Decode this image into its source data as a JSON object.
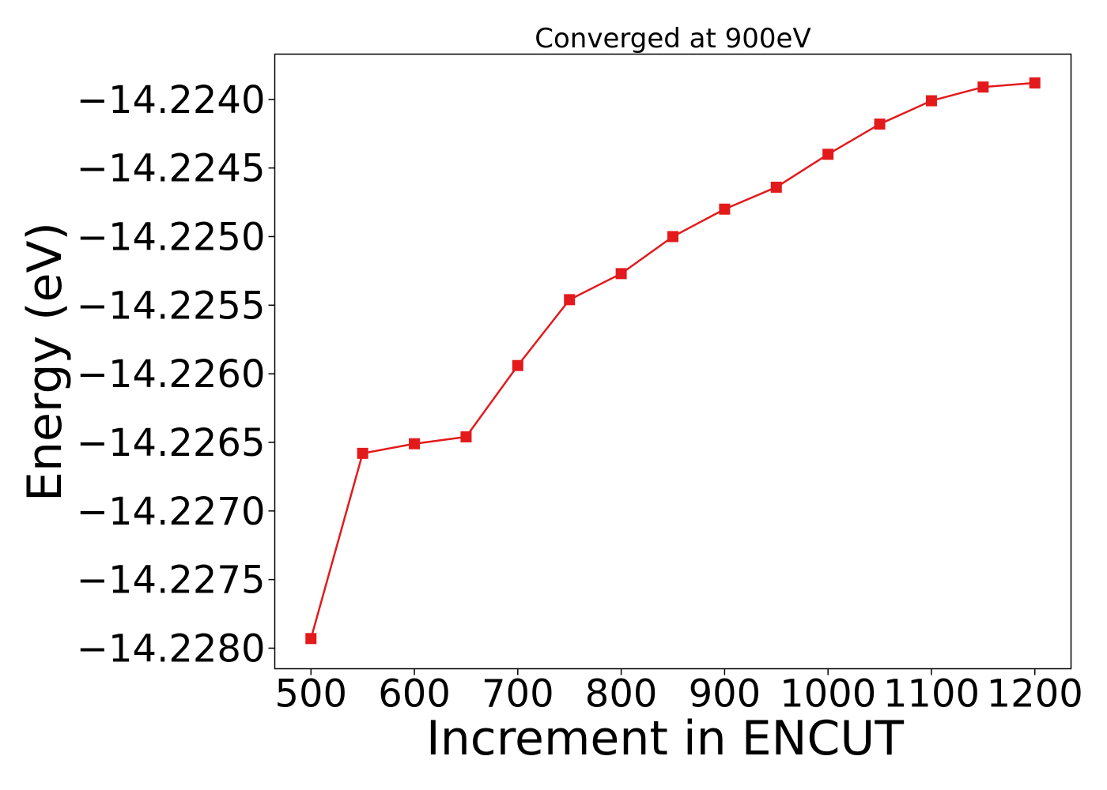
{
  "chart_data": {
    "type": "line",
    "title": "Converged at 900eV",
    "xlabel": "Increment in ENCUT",
    "ylabel": "Energy (eV)",
    "x": [
      500,
      550,
      600,
      650,
      700,
      750,
      800,
      850,
      900,
      950,
      1000,
      1050,
      1100,
      1150,
      1200
    ],
    "series": [
      {
        "values": [
          -14.22793,
          -14.22658,
          -14.22651,
          -14.22646,
          -14.22594,
          -14.22546,
          -14.22527,
          -14.225,
          -14.2248,
          -14.22464,
          -14.2244,
          -14.22418,
          -14.22401,
          -14.22391,
          -14.22388
        ],
        "color": "#e31a1c",
        "marker": "square"
      }
    ],
    "xlim": [
      465,
      1235
    ],
    "ylim": [
      -14.22815,
      -14.22367
    ],
    "xticks": [
      500,
      600,
      700,
      800,
      900,
      1000,
      1100,
      1200
    ],
    "xtick_labels": [
      "500",
      "600",
      "700",
      "800",
      "900",
      "1000",
      "1100",
      "1200"
    ],
    "yticks": [
      -14.224,
      -14.2245,
      -14.225,
      -14.2255,
      -14.226,
      -14.2265,
      -14.227,
      -14.2275,
      -14.228
    ],
    "ytick_labels": [
      "−14.2240",
      "−14.2245",
      "−14.2250",
      "−14.2255",
      "−14.2260",
      "−14.2265",
      "−14.2270",
      "−14.2275",
      "−14.2280"
    ],
    "grid": false,
    "legend": false
  }
}
